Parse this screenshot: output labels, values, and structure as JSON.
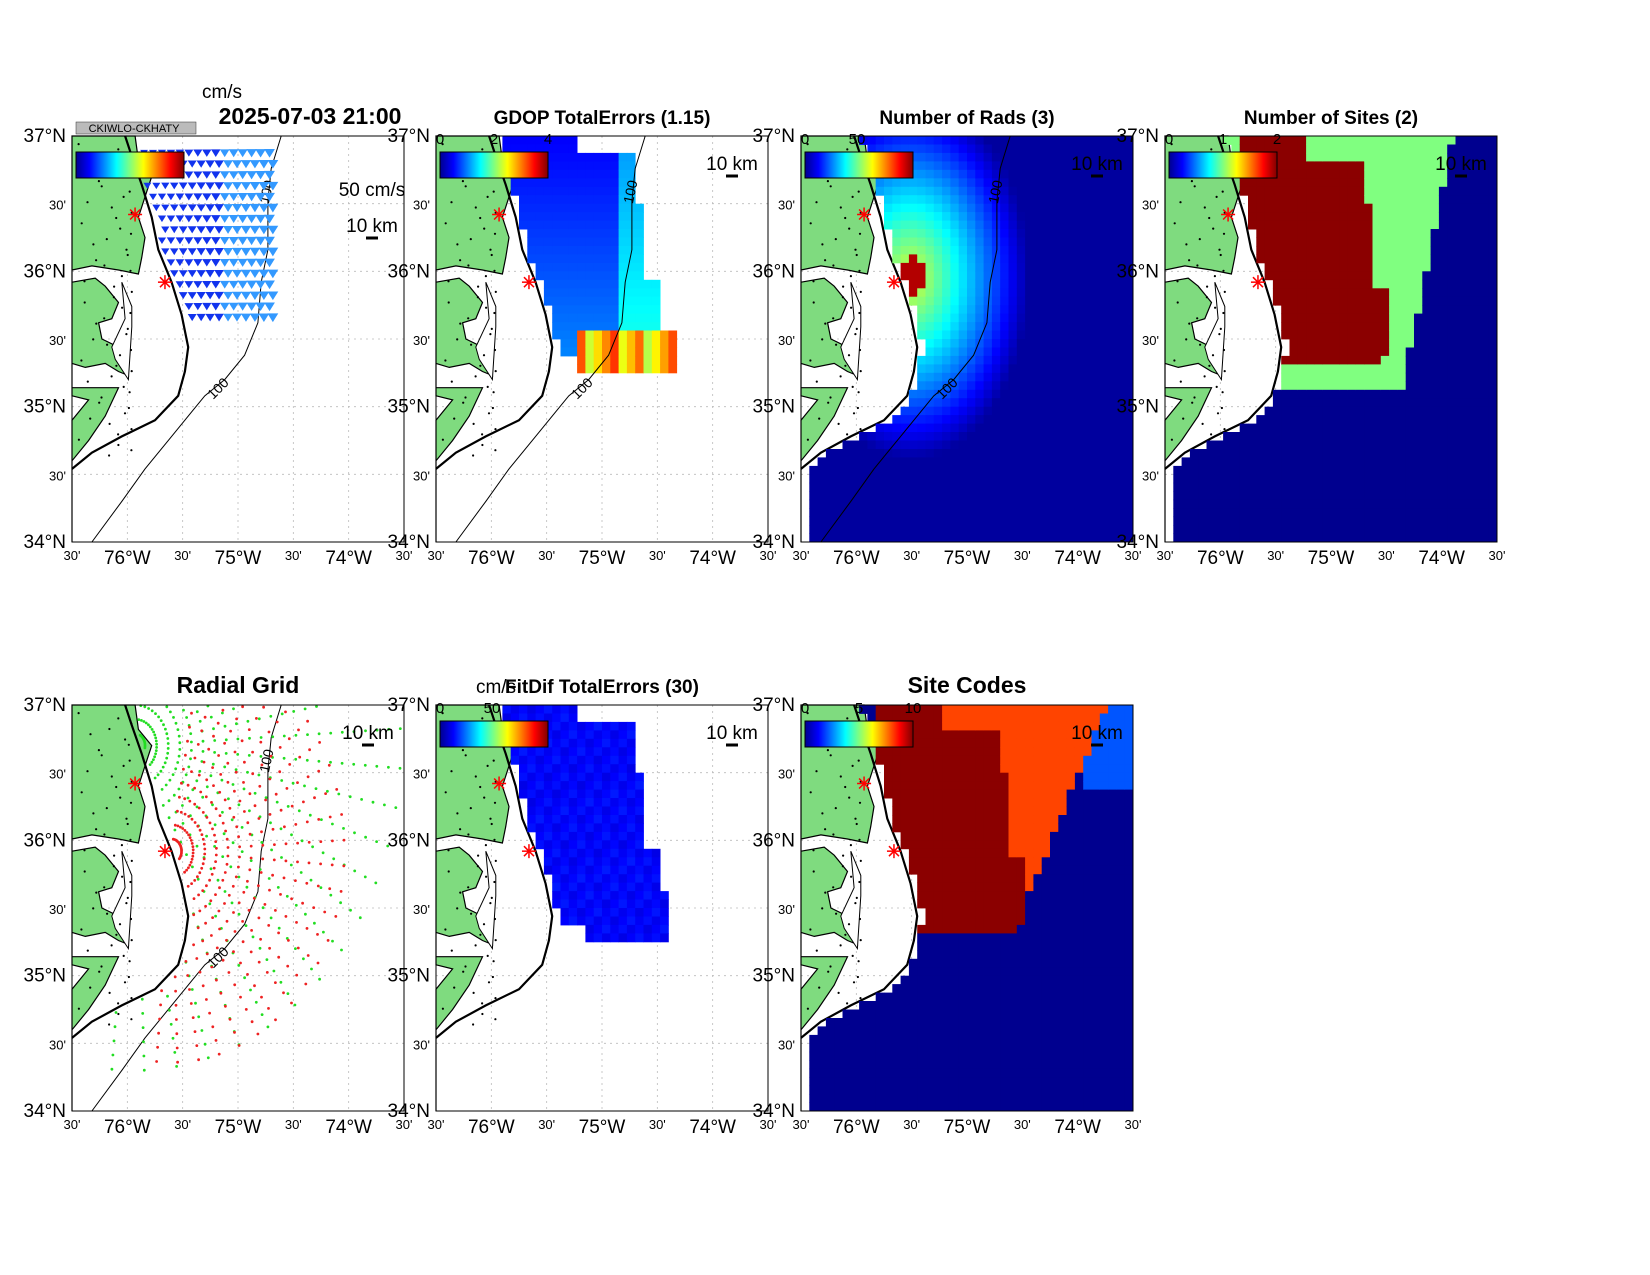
{
  "figure": {
    "timestamp": "2025-07-03 21:00",
    "unit_label": "cm/s",
    "overlap_label": "CKIWLO-CKHATY",
    "scale_arrow_label": "50 cm/s",
    "scale_bar_label": "10 km"
  },
  "axes": {
    "lat_labels": [
      "37°N",
      "30'",
      "36°N",
      "30'",
      "35°N",
      "30'",
      "34°N"
    ],
    "lon_labels": [
      "30'",
      "76°W",
      "30'",
      "75°W",
      "30'",
      "74°W",
      "30'"
    ],
    "contour_label": "100"
  },
  "panels": [
    {
      "id": "currents",
      "title": "",
      "cbar_ticks": [],
      "cbar_unit": ""
    },
    {
      "id": "gdop",
      "title": "GDOP TotalErrors (1.15)",
      "cbar_ticks": [
        "0",
        "2",
        "4"
      ],
      "cbar_unit": "",
      "contour_label": "1.15"
    },
    {
      "id": "nrads",
      "title": "Number of Rads (3)",
      "cbar_ticks": [
        "0",
        "50"
      ],
      "cbar_unit": "",
      "contour_label": "3"
    },
    {
      "id": "nsites",
      "title": "Number of Sites (2)",
      "cbar_ticks": [
        "0",
        "1",
        "2"
      ],
      "cbar_unit": "",
      "contour_label": "2"
    },
    {
      "id": "radgrid",
      "title": "Radial Grid",
      "cbar_ticks": [],
      "cbar_unit": ""
    },
    {
      "id": "fitdif",
      "title": "FitDif TotalErrors (30)",
      "cbar_ticks": [
        "0",
        "50"
      ],
      "cbar_unit": "cm/s"
    },
    {
      "id": "sitecodes",
      "title": "Site Codes",
      "cbar_ticks": [
        "0",
        "5",
        "10"
      ],
      "cbar_unit": ""
    }
  ],
  "map_extent": {
    "lon": [
      -76.5,
      -73.5
    ],
    "lat": [
      34,
      37
    ]
  },
  "sites": [
    {
      "lon": -75.93,
      "lat": 36.42
    },
    {
      "lon": -75.66,
      "lat": 35.92
    }
  ],
  "colors": {
    "land": "#7fdb7f",
    "ocean_low": "#00008f",
    "radial_site_a": "#22dd22",
    "radial_site_b": "#ee2222",
    "site_marker": "#ff0000"
  }
}
